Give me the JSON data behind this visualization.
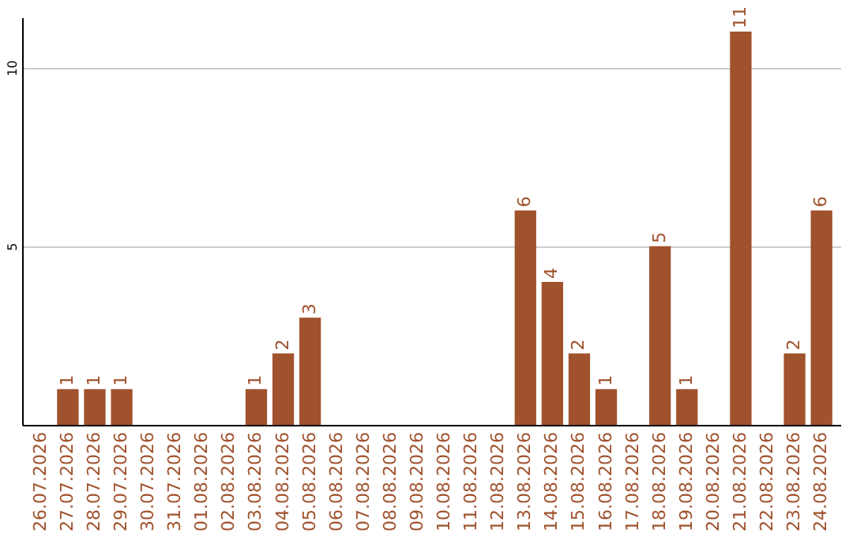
{
  "chart_data": {
    "type": "bar",
    "categories": [
      "26.07.2026",
      "27.07.2026",
      "28.07.2026",
      "29.07.2026",
      "30.07.2026",
      "31.07.2026",
      "01.08.2026",
      "02.08.2026",
      "03.08.2026",
      "04.08.2026",
      "05.08.2026",
      "06.08.2026",
      "07.08.2026",
      "08.08.2026",
      "09.08.2026",
      "10.08.2026",
      "11.08.2026",
      "12.08.2026",
      "13.08.2026",
      "14.08.2026",
      "15.08.2026",
      "16.08.2026",
      "17.08.2026",
      "18.08.2026",
      "19.08.2026",
      "20.08.2026",
      "21.08.2026",
      "22.08.2026",
      "23.08.2026",
      "24.08.2026"
    ],
    "values": [
      0,
      1,
      1,
      1,
      0,
      0,
      0,
      0,
      1,
      2,
      3,
      0,
      0,
      0,
      0,
      0,
      0,
      0,
      6,
      4,
      2,
      1,
      0,
      5,
      1,
      0,
      11,
      0,
      2,
      6
    ],
    "value_labels": [
      null,
      "1",
      "1",
      "1",
      null,
      null,
      null,
      null,
      "1",
      "2",
      "3",
      null,
      null,
      null,
      null,
      null,
      null,
      null,
      "6",
      "4",
      "2",
      "1",
      null,
      "5",
      "1",
      null,
      "11",
      null,
      "2",
      "6"
    ],
    "color": "#a0522d",
    "ylim": [
      0,
      11.4
    ],
    "yticks": [
      5,
      10
    ],
    "grid": "y"
  }
}
